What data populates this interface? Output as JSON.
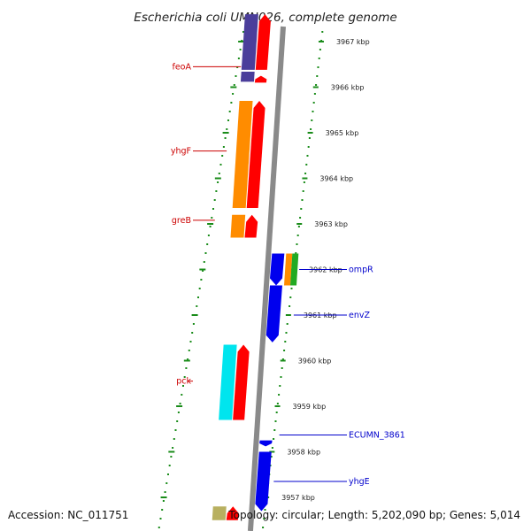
{
  "title": "Escherichia coli UMN026, complete genome",
  "footer": {
    "accession": "Accession: NC_011751",
    "summary": "Topology: circular; Length: 5,202,090 bp; Genes: 5,014"
  },
  "colors": {
    "background": "#ffffff",
    "backbone": "#8a8a8a",
    "tick": "#1a8c1a",
    "label_left": "#cc0000",
    "label_right": "#0000cc"
  },
  "ticks": [
    {
      "kbp": 3967,
      "label": "3967 kbp"
    },
    {
      "kbp": 3966,
      "label": "3966 kbp"
    },
    {
      "kbp": 3965,
      "label": "3965 kbp"
    },
    {
      "kbp": 3964,
      "label": "3964 kbp"
    },
    {
      "kbp": 3963,
      "label": "3963 kbp"
    },
    {
      "kbp": 3962,
      "label": "3962 kbp"
    },
    {
      "kbp": 3961,
      "label": "3961 kbp"
    },
    {
      "kbp": 3960,
      "label": "3960 kbp"
    },
    {
      "kbp": 3959,
      "label": "3959 kbp"
    },
    {
      "kbp": 3958,
      "label": "3958 kbp"
    },
    {
      "kbp": 3957,
      "label": "3957 kbp"
    }
  ],
  "features": [
    {
      "name": "feoA",
      "side": "left",
      "strand": "forward",
      "start_kbp": 3966.25,
      "end_kbp": 3966.1,
      "color": "#ff0000"
    },
    {
      "name": "feoA",
      "side": "left",
      "strand": "forward",
      "start_kbp": 3967.6,
      "end_kbp": 3966.38,
      "color": "#ff0000"
    },
    {
      "name": "feoA-cog",
      "side": "left",
      "strand": "cog",
      "start_kbp": 3967.6,
      "end_kbp": 3966.38,
      "color": "#4b3e9b"
    },
    {
      "name": "feoA-cog",
      "side": "left",
      "strand": "cog",
      "start_kbp": 3966.34,
      "end_kbp": 3966.12,
      "color": "#4b3e9b"
    },
    {
      "name": "yhgF",
      "side": "left",
      "strand": "forward",
      "start_kbp": 3965.7,
      "end_kbp": 3963.35,
      "color": "#ff0000"
    },
    {
      "name": "yhgF-cog",
      "side": "left",
      "strand": "cog",
      "start_kbp": 3965.7,
      "end_kbp": 3963.35,
      "color": "#ff8c00"
    },
    {
      "name": "greB",
      "side": "left",
      "strand": "forward",
      "start_kbp": 3963.2,
      "end_kbp": 3962.7,
      "color": "#ff0000"
    },
    {
      "name": "greB-cog",
      "side": "left",
      "strand": "cog",
      "start_kbp": 3963.2,
      "end_kbp": 3962.7,
      "color": "#ff8c00"
    },
    {
      "name": "ompR",
      "side": "right",
      "strand": "reverse",
      "start_kbp": 3961.65,
      "end_kbp": 3962.35,
      "color": "#0000ee"
    },
    {
      "name": "ompR-cog-a",
      "side": "right",
      "strand": "cog",
      "start_kbp": 3961.65,
      "end_kbp": 3962.35,
      "color": "#ff8c00"
    },
    {
      "name": "ompR-cog-b",
      "side": "right",
      "strand": "cog",
      "start_kbp": 3961.65,
      "end_kbp": 3962.35,
      "color": "#22aa22"
    },
    {
      "name": "envZ",
      "side": "right",
      "strand": "reverse",
      "start_kbp": 3960.4,
      "end_kbp": 3961.65,
      "color": "#0000ee"
    },
    {
      "name": "pck",
      "side": "left",
      "strand": "forward",
      "start_kbp": 3960.35,
      "end_kbp": 3958.7,
      "color": "#ff0000"
    },
    {
      "name": "pck-cog",
      "side": "left",
      "strand": "cog",
      "start_kbp": 3960.35,
      "end_kbp": 3958.7,
      "color": "#00e5ee"
    },
    {
      "name": "ECUMN_3861",
      "side": "right",
      "strand": "reverse",
      "start_kbp": 3958.12,
      "end_kbp": 3958.25,
      "color": "#0000ee"
    },
    {
      "name": "yhgE",
      "side": "right",
      "strand": "reverse",
      "start_kbp": 3956.7,
      "end_kbp": 3958.0,
      "color": "#0000ee"
    },
    {
      "name": "bottom-forward",
      "side": "left",
      "strand": "forward",
      "start_kbp": 3956.8,
      "end_kbp": 3956.5,
      "color": "#ff0000"
    },
    {
      "name": "bottom-cog",
      "side": "left",
      "strand": "cog",
      "start_kbp": 3956.8,
      "end_kbp": 3956.5,
      "color": "#b8b060"
    }
  ],
  "labels": [
    {
      "text": "feoA",
      "side": "left",
      "kbp": 3966.45,
      "color": "#cc0000"
    },
    {
      "text": "yhgF",
      "side": "left",
      "kbp": 3964.6,
      "color": "#cc0000"
    },
    {
      "text": "greB",
      "side": "left",
      "kbp": 3963.08,
      "color": "#cc0000"
    },
    {
      "text": "ompR",
      "side": "right",
      "kbp": 3962.0,
      "color": "#0000cc"
    },
    {
      "text": "envZ",
      "side": "right",
      "kbp": 3961.0,
      "color": "#0000cc"
    },
    {
      "text": "pck",
      "side": "left",
      "kbp": 3959.55,
      "color": "#cc0000"
    },
    {
      "text": "ECUMN_3861",
      "side": "right",
      "kbp": 3958.37,
      "color": "#0000cc"
    },
    {
      "text": "yhgE",
      "side": "right",
      "kbp": 3957.35,
      "color": "#0000cc"
    }
  ]
}
